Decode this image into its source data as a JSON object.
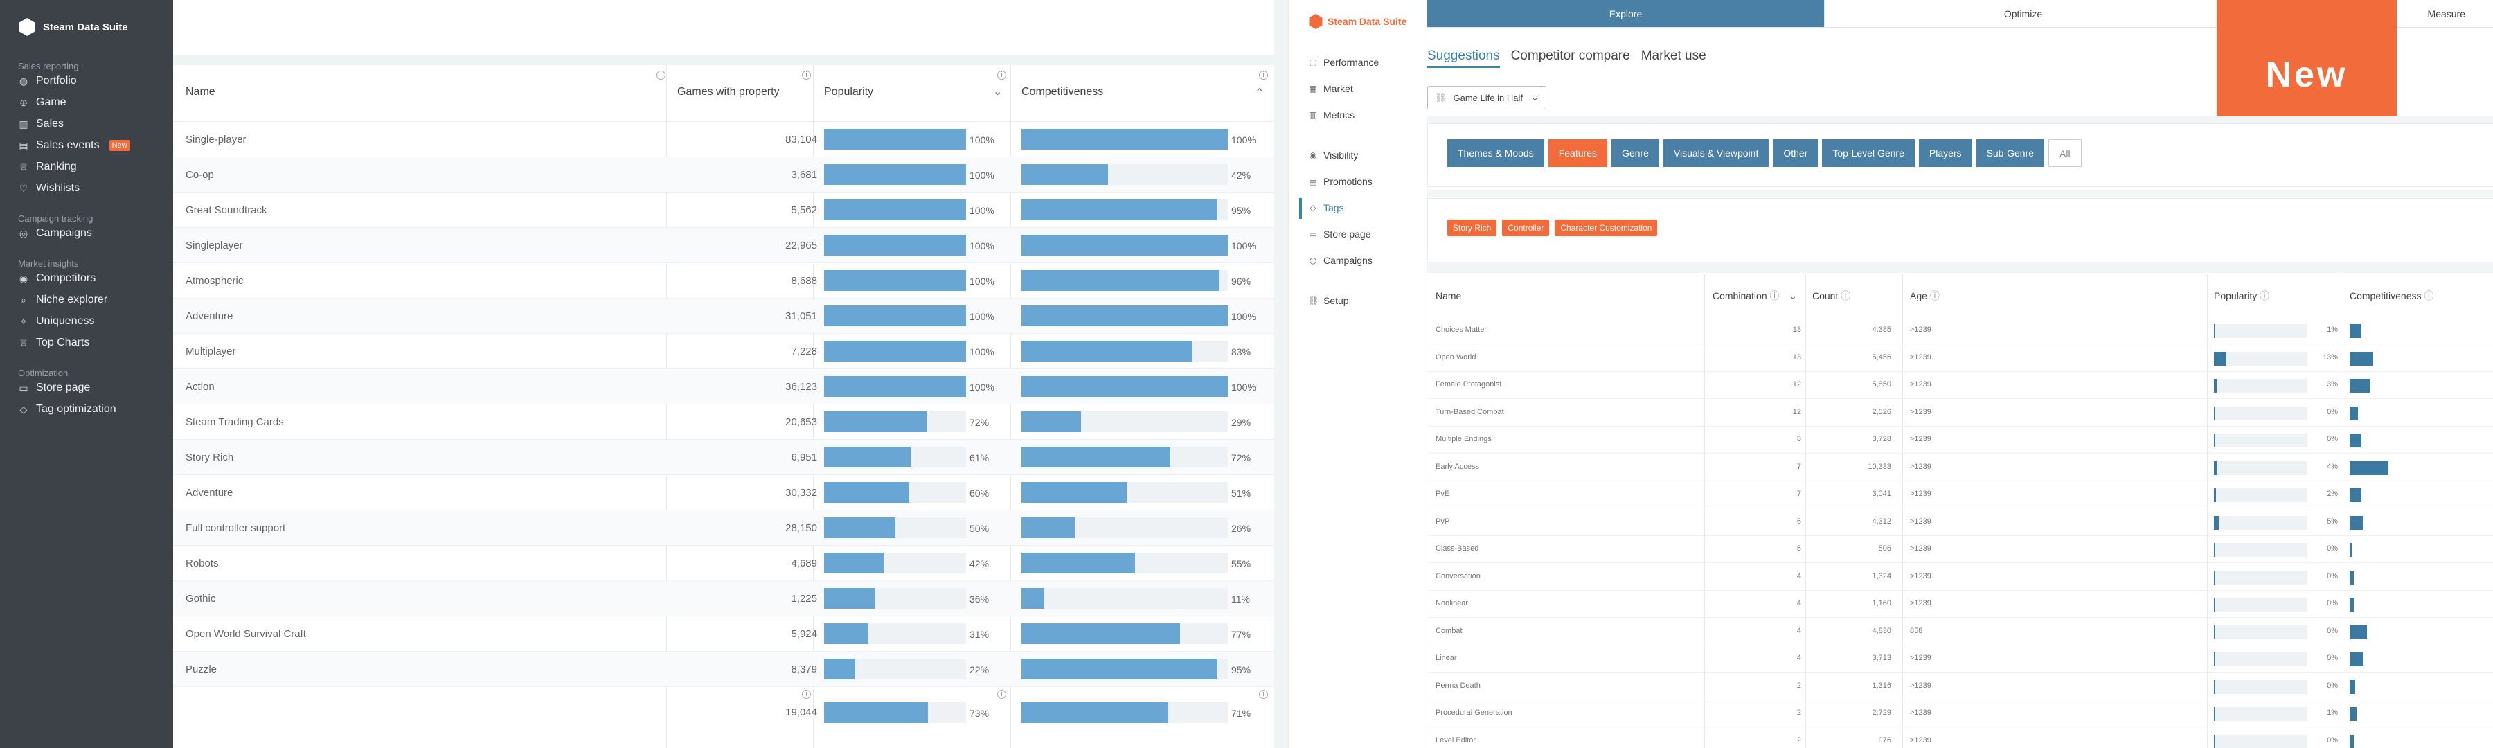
{
  "left_app": {
    "sidebar": {
      "brand": "Steam Data Suite",
      "sections": [
        {
          "title": "Sales reporting",
          "items": [
            {
              "label": "Portfolio",
              "icon": "globe-icon"
            },
            {
              "label": "Game",
              "icon": "gamepad-icon"
            },
            {
              "label": "Sales",
              "icon": "bar-chart-icon"
            },
            {
              "label": "Sales events",
              "icon": "calendar-icon",
              "badge": "New"
            },
            {
              "label": "Ranking",
              "icon": "trophy-icon"
            },
            {
              "label": "Wishlists",
              "icon": "heart-icon"
            }
          ]
        },
        {
          "title": "Campaign tracking",
          "items": [
            {
              "label": "Campaigns",
              "icon": "target-icon"
            }
          ]
        },
        {
          "title": "Market insights",
          "items": [
            {
              "label": "Competitors",
              "icon": "eye-icon"
            },
            {
              "label": "Niche explorer",
              "icon": "search-icon"
            },
            {
              "label": "Uniqueness",
              "icon": "sparkle-icon"
            },
            {
              "label": "Top Charts",
              "icon": "trophy-icon"
            }
          ]
        },
        {
          "title": "Optimization",
          "items": [
            {
              "label": "Store page",
              "icon": "monitor-icon"
            },
            {
              "label": "Tag optimization",
              "icon": "tag-icon"
            }
          ]
        }
      ]
    },
    "table": {
      "headers": {
        "name": "Name",
        "games": "Games with property",
        "popularity": "Popularity",
        "competitiveness": "Competitiveness"
      },
      "rows": [
        {
          "name": "Single-player",
          "games": "83,104",
          "pop": 100,
          "pop_label": "100%",
          "comp": 100,
          "comp_label": "100%"
        },
        {
          "name": "Co-op",
          "games": "3,681",
          "pop": 100,
          "pop_label": "100%",
          "comp": 42,
          "comp_label": "42%"
        },
        {
          "name": "Great Soundtrack",
          "games": "5,562",
          "pop": 100,
          "pop_label": "100%",
          "comp": 95,
          "comp_label": "95%"
        },
        {
          "name": "Singleplayer",
          "games": "22,965",
          "pop": 100,
          "pop_label": "100%",
          "comp": 100,
          "comp_label": "100%"
        },
        {
          "name": "Atmospheric",
          "games": "8,688",
          "pop": 100,
          "pop_label": "100%",
          "comp": 96,
          "comp_label": "96%"
        },
        {
          "name": "Adventure",
          "games": "31,051",
          "pop": 100,
          "pop_label": "100%",
          "comp": 100,
          "comp_label": "100%"
        },
        {
          "name": "Multiplayer",
          "games": "7,228",
          "pop": 100,
          "pop_label": "100%",
          "comp": 83,
          "comp_label": "83%"
        },
        {
          "name": "Action",
          "games": "36,123",
          "pop": 100,
          "pop_label": "100%",
          "comp": 100,
          "comp_label": "100%"
        },
        {
          "name": "Steam Trading Cards",
          "games": "20,653",
          "pop": 72,
          "pop_label": "72%",
          "comp": 29,
          "comp_label": "29%"
        },
        {
          "name": "Story Rich",
          "games": "6,951",
          "pop": 61,
          "pop_label": "61%",
          "comp": 72,
          "comp_label": "72%"
        },
        {
          "name": "Adventure",
          "games": "30,332",
          "pop": 60,
          "pop_label": "60%",
          "comp": 51,
          "comp_label": "51%"
        },
        {
          "name": "Full controller support",
          "games": "28,150",
          "pop": 50,
          "pop_label": "50%",
          "comp": 26,
          "comp_label": "26%"
        },
        {
          "name": "Robots",
          "games": "4,689",
          "pop": 42,
          "pop_label": "42%",
          "comp": 55,
          "comp_label": "55%"
        },
        {
          "name": "Gothic",
          "games": "1,225",
          "pop": 36,
          "pop_label": "36%",
          "comp": 11,
          "comp_label": "11%"
        },
        {
          "name": "Open World Survival Craft",
          "games": "5,924",
          "pop": 31,
          "pop_label": "31%",
          "comp": 77,
          "comp_label": "77%"
        },
        {
          "name": "Puzzle",
          "games": "8,379",
          "pop": 22,
          "pop_label": "22%",
          "comp": 95,
          "comp_label": "95%"
        }
      ],
      "footer": {
        "games": "19,044",
        "pop": 73,
        "pop_label": "73%",
        "comp": 71,
        "comp_label": "71%"
      }
    }
  },
  "right_app": {
    "brand": "Steam Data Suite",
    "nav": [
      {
        "label": "Performance",
        "icon": "square-icon"
      },
      {
        "label": "Market",
        "icon": "grid-icon"
      },
      {
        "label": "Metrics",
        "icon": "bar-chart-icon"
      },
      {
        "label": "Visibility",
        "icon": "eye-icon"
      },
      {
        "label": "Promotions",
        "icon": "calendar-icon"
      },
      {
        "label": "Tags",
        "icon": "tag-icon",
        "active": true
      },
      {
        "label": "Store page",
        "icon": "monitor-icon"
      },
      {
        "label": "Campaigns",
        "icon": "target-icon"
      },
      {
        "label": "Setup",
        "icon": "link-icon"
      }
    ],
    "topnav": [
      "Explore",
      "Optimize",
      "Measure"
    ],
    "new_flag": "New",
    "subtabs": [
      "Suggestions",
      "Competitor compare",
      "Market use"
    ],
    "game_select": "Game Life in Half",
    "category_tabs": [
      {
        "label": "Themes & Moods"
      },
      {
        "label": "Features",
        "selected": true
      },
      {
        "label": "Genre"
      },
      {
        "label": "Visuals & Viewpoint"
      },
      {
        "label": "Other"
      },
      {
        "label": "Top-Level Genre"
      },
      {
        "label": "Players"
      },
      {
        "label": "Sub-Genre"
      },
      {
        "label": "All",
        "all": true
      }
    ],
    "tags": [
      "Story Rich",
      "Controller",
      "Character Customization"
    ],
    "table": {
      "headers": {
        "name": "Name",
        "combination": "Combination",
        "count": "Count",
        "age": "Age",
        "popularity": "Popularity",
        "competitiveness": "Competitiveness"
      },
      "rows": [
        {
          "name": "Choices Matter",
          "comb": "13",
          "count": "4,385",
          "age": ">1239",
          "pop": 1,
          "pop_label": "1%",
          "comp": 8
        },
        {
          "name": "Open World",
          "comb": "13",
          "count": "5,456",
          "age": ">1239",
          "pop": 13,
          "pop_label": "13%",
          "comp": 16
        },
        {
          "name": "Female Protagonist",
          "comb": "12",
          "count": "5,850",
          "age": ">1239",
          "pop": 3,
          "pop_label": "3%",
          "comp": 14
        },
        {
          "name": "Turn-Based Combat",
          "comb": "12",
          "count": "2,526",
          "age": ">1239",
          "pop": 0,
          "pop_label": "0%",
          "comp": 6
        },
        {
          "name": "Multiple Endings",
          "comb": "8",
          "count": "3,728",
          "age": ">1239",
          "pop": 0,
          "pop_label": "0%",
          "comp": 8
        },
        {
          "name": "Early Access",
          "comb": "7",
          "count": "10,333",
          "age": ">1239",
          "pop": 4,
          "pop_label": "4%",
          "comp": 27
        },
        {
          "name": "PvE",
          "comb": "7",
          "count": "3,041",
          "age": ">1239",
          "pop": 2,
          "pop_label": "2%",
          "comp": 8
        },
        {
          "name": "PvP",
          "comb": "6",
          "count": "4,312",
          "age": ">1239",
          "pop": 5,
          "pop_label": "5%",
          "comp": 9
        },
        {
          "name": "Class-Based",
          "comb": "5",
          "count": "506",
          "age": ">1239",
          "pop": 0,
          "pop_label": "0%",
          "comp": 0
        },
        {
          "name": "Conversation",
          "comb": "4",
          "count": "1,324",
          "age": ">1239",
          "pop": 0,
          "pop_label": "0%",
          "comp": 3
        },
        {
          "name": "Nonlinear",
          "comb": "4",
          "count": "1,160",
          "age": ">1239",
          "pop": 0,
          "pop_label": "0%",
          "comp": 3
        },
        {
          "name": "Combat",
          "comb": "4",
          "count": "4,830",
          "age": "858",
          "pop": 0,
          "pop_label": "0%",
          "comp": 12
        },
        {
          "name": "Linear",
          "comb": "4",
          "count": "3,713",
          "age": ">1239",
          "pop": 0,
          "pop_label": "0%",
          "comp": 9
        },
        {
          "name": "Perma Death",
          "comb": "2",
          "count": "1,316",
          "age": ">1239",
          "pop": 0,
          "pop_label": "0%",
          "comp": 4
        },
        {
          "name": "Procedural Generation",
          "comb": "2",
          "count": "2,729",
          "age": ">1239",
          "pop": 1,
          "pop_label": "1%",
          "comp": 5
        },
        {
          "name": "Level Editor",
          "comb": "2",
          "count": "976",
          "age": ">1239",
          "pop": 0,
          "pop_label": "0%",
          "comp": 3
        }
      ]
    }
  },
  "colors": {
    "sidebar_bg": "#3d4148",
    "accent_orange": "#f26b3a",
    "bar_light_blue": "#6aa6d4",
    "bar_dark_blue": "#3b79a0",
    "tab_blue": "#4a7fa6"
  }
}
